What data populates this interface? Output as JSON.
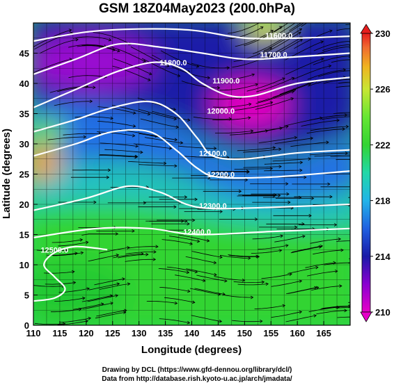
{
  "title": "GSM 18Z04May2023 (200.0hPa)",
  "x_axis": {
    "label": "Longitude (degrees)",
    "range": [
      110,
      170
    ],
    "ticks": [
      "110",
      "115",
      "120",
      "125",
      "130",
      "135",
      "140",
      "145",
      "150",
      "155",
      "160",
      "165"
    ]
  },
  "y_axis": {
    "label": "Latitude (degrees)",
    "range": [
      0,
      50
    ],
    "ticks": [
      "0",
      "5",
      "10",
      "15",
      "20",
      "25",
      "30",
      "35",
      "40",
      "45"
    ]
  },
  "colorbar": {
    "range": [
      210,
      230
    ],
    "ticks": [
      "210",
      "214",
      "218",
      "222",
      "226",
      "230"
    ],
    "colors": [
      "#e600c8",
      "#8a00d0",
      "#1a1aa8",
      "#2060e0",
      "#22b4e8",
      "#22d8a8",
      "#33d433",
      "#66e633",
      "#c8e633",
      "#f0b420",
      "#f06a30",
      "#e61e1e"
    ]
  },
  "contours": [
    {
      "label": "11600.0",
      "lon": 156.5,
      "lat": 47.5
    },
    {
      "label": "11700.0",
      "lon": 155.5,
      "lat": 44.3
    },
    {
      "label": "11800.0",
      "lon": 136.5,
      "lat": 43.0
    },
    {
      "label": "11900.0",
      "lon": 146.5,
      "lat": 40.0
    },
    {
      "label": "12000.0",
      "lon": 145.5,
      "lat": 35.0
    },
    {
      "label": "12100.0",
      "lon": 144.0,
      "lat": 28.0
    },
    {
      "label": "12200.0",
      "lon": 145.5,
      "lat": 24.5
    },
    {
      "label": "12300.0",
      "lon": 144.0,
      "lat": 19.3
    },
    {
      "label": "12400.0",
      "lon": 141.0,
      "lat": 15.0
    },
    {
      "label": "12500.0",
      "lon": 114.0,
      "lat": 12.0
    }
  ],
  "credits": [
    "Drawing by DCL (https://www.gfd-dennou.org/library/dcl/)",
    "Data from http://database.rish.kyoto-u.ac.jp/arch/jmadata/"
  ]
}
